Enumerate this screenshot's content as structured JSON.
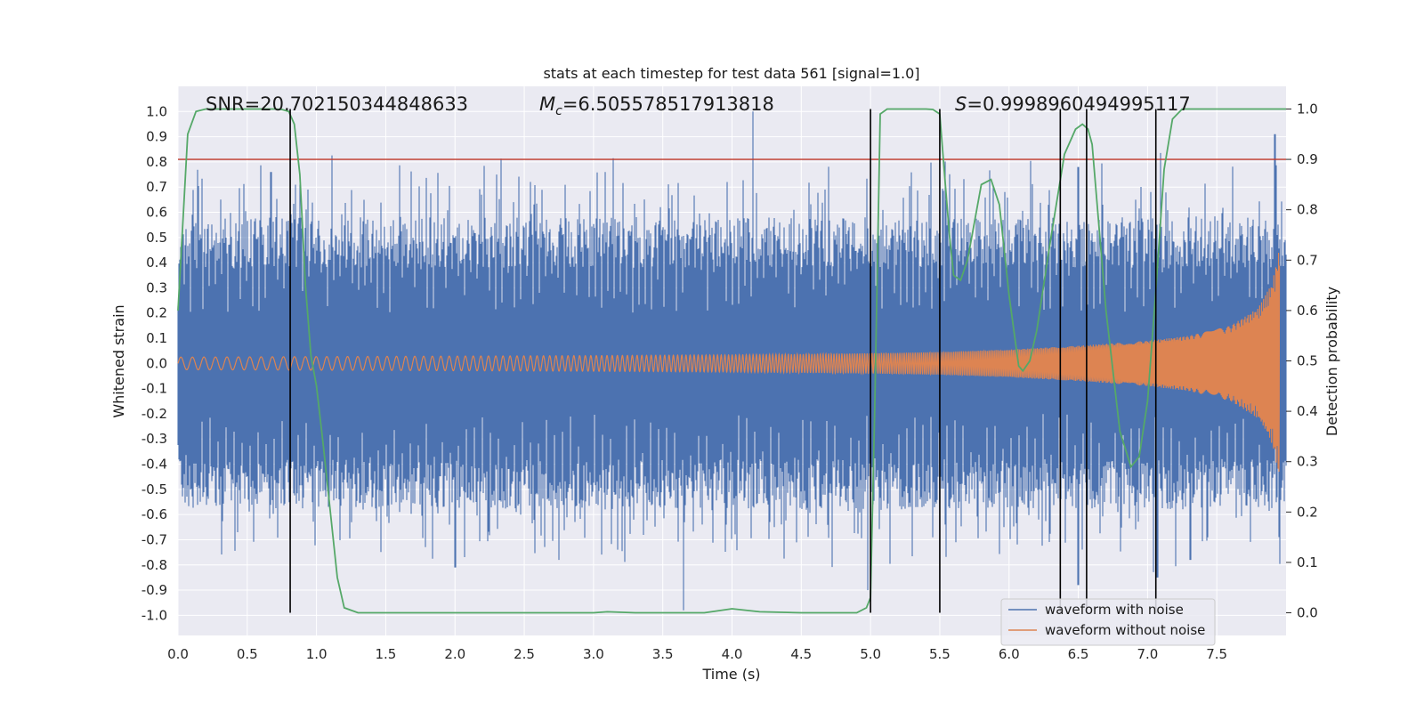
{
  "chart_data": {
    "type": "line",
    "title": "stats at each timestep for test data 561 [signal=1.0]",
    "xlabel": "Time (s)",
    "ylabel": "Whitened strain",
    "y2label": "Detection probability",
    "xlim": [
      0.0,
      8.0
    ],
    "ylim": [
      -1.08,
      1.1
    ],
    "y2lim": [
      -0.045,
      1.045
    ],
    "x_ticks": [
      "0.0",
      "0.5",
      "1.0",
      "1.5",
      "2.0",
      "2.5",
      "3.0",
      "3.5",
      "4.0",
      "4.5",
      "5.0",
      "5.5",
      "6.0",
      "6.5",
      "7.0",
      "7.5"
    ],
    "y_ticks": [
      "-1.0",
      "-0.9",
      "-0.8",
      "-0.7",
      "-0.6",
      "-0.5",
      "-0.4",
      "-0.3",
      "-0.2",
      "-0.1",
      "0.0",
      "0.1",
      "0.2",
      "0.3",
      "0.4",
      "0.5",
      "0.6",
      "0.7",
      "0.8",
      "0.9",
      "1.0"
    ],
    "y2_ticks": [
      "0.0",
      "0.1",
      "0.2",
      "0.3",
      "0.4",
      "0.5",
      "0.6",
      "0.7",
      "0.8",
      "0.9",
      "1.0"
    ],
    "grid": true,
    "legend_position": "lower-right",
    "threshold": {
      "value": 0.9,
      "axis": "right",
      "color": "#c0392b"
    },
    "annotations": {
      "snr": "SNR=20.702150344848633",
      "mc_symbol": "M",
      "mc_sub": "c",
      "mc_value": "=6.505578517913818",
      "s_symbol": "S",
      "s_value": "=0.9998960494995117"
    },
    "vlines": [
      0.81,
      5.0,
      5.5,
      6.37,
      6.56,
      7.06
    ],
    "series": [
      {
        "name": "waveform with noise",
        "color": "#4c72b0",
        "envelope": {
          "band": 0.38,
          "peaks_pos": [
            [
              0.67,
              0.76
            ],
            [
              0.83,
              0.5
            ],
            [
              4.15,
              1.0
            ],
            [
              7.92,
              0.91
            ],
            [
              2.3,
              0.75
            ],
            [
              6.5,
              0.78
            ]
          ],
          "peaks_neg": [
            [
              0.43,
              -0.67
            ],
            [
              2.0,
              -0.81
            ],
            [
              2.75,
              -0.78
            ],
            [
              3.65,
              -0.98
            ],
            [
              4.98,
              -0.9
            ],
            [
              6.5,
              -0.88
            ],
            [
              7.07,
              -0.85
            ],
            [
              7.31,
              -0.78
            ]
          ]
        }
      },
      {
        "name": "waveform without noise",
        "color": "#dd8452",
        "envelope": {
          "t": [
            0.0,
            1.0,
            2.0,
            3.0,
            4.0,
            5.0,
            5.5,
            6.0,
            6.5,
            7.0,
            7.3,
            7.6,
            7.8,
            7.9,
            7.95,
            8.0
          ],
          "amp": [
            0.025,
            0.027,
            0.029,
            0.031,
            0.034,
            0.04,
            0.045,
            0.055,
            0.07,
            0.09,
            0.11,
            0.15,
            0.22,
            0.32,
            0.45,
            0.5
          ]
        }
      },
      {
        "name": "Detection probability",
        "axis": "right",
        "color": "#55a868",
        "x": [
          0.0,
          0.03,
          0.07,
          0.13,
          0.2,
          0.3,
          0.4,
          0.5,
          0.6,
          0.7,
          0.75,
          0.8,
          0.84,
          0.88,
          0.92,
          0.96,
          1.0,
          1.05,
          1.1,
          1.15,
          1.2,
          1.3,
          1.5,
          2.0,
          2.5,
          3.0,
          3.1,
          3.3,
          3.5,
          3.8,
          4.0,
          4.2,
          4.5,
          4.9,
          4.97,
          5.0,
          5.03,
          5.07,
          5.12,
          5.2,
          5.3,
          5.4,
          5.45,
          5.5,
          5.54,
          5.57,
          5.6,
          5.65,
          5.7,
          5.8,
          5.87,
          5.93,
          6.0,
          6.07,
          6.1,
          6.15,
          6.2,
          6.3,
          6.4,
          6.48,
          6.53,
          6.57,
          6.6,
          6.7,
          6.8,
          6.88,
          6.94,
          7.0,
          7.06,
          7.12,
          7.18,
          7.25,
          7.35,
          7.5,
          8.0
        ],
        "y": [
          0.6,
          0.75,
          0.95,
          0.995,
          1.0,
          1.0,
          1.0,
          1.0,
          1.0,
          1.0,
          0.999,
          0.995,
          0.97,
          0.87,
          0.65,
          0.51,
          0.45,
          0.33,
          0.2,
          0.07,
          0.01,
          0.0,
          0.0,
          0.0,
          0.0,
          0.0,
          0.002,
          0.0,
          0.0,
          0.0,
          0.008,
          0.002,
          0.0,
          0.0,
          0.01,
          0.03,
          0.4,
          0.99,
          1.0,
          1.0,
          1.0,
          1.0,
          0.999,
          0.99,
          0.85,
          0.75,
          0.67,
          0.66,
          0.7,
          0.85,
          0.86,
          0.81,
          0.63,
          0.49,
          0.48,
          0.5,
          0.56,
          0.74,
          0.91,
          0.96,
          0.97,
          0.96,
          0.93,
          0.6,
          0.36,
          0.29,
          0.31,
          0.42,
          0.64,
          0.88,
          0.98,
          1.0,
          1.0,
          1.0,
          1.0
        ]
      }
    ]
  }
}
